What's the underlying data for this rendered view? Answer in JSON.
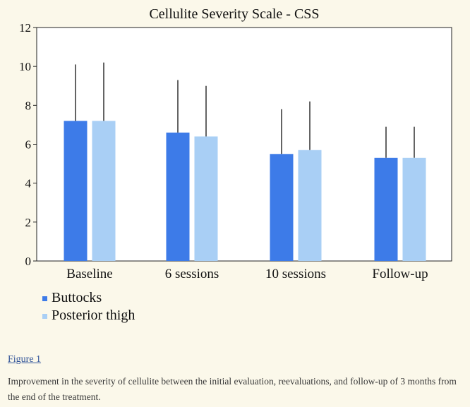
{
  "chart_data": {
    "type": "bar",
    "title": "Cellulite Severity Scale - CSS",
    "xlabel": "",
    "ylabel": "",
    "ylim": [
      0,
      12
    ],
    "yticks": [
      0,
      2,
      4,
      6,
      8,
      10,
      12
    ],
    "grid": false,
    "legend_position": "bottom-left",
    "categories": [
      "Baseline",
      "6 sessions",
      "10 sessions",
      "Follow-up"
    ],
    "series": [
      {
        "name": "Buttocks",
        "color": "#3d7be8",
        "values": [
          7.2,
          6.6,
          5.5,
          5.3
        ],
        "error_upper": [
          2.9,
          2.7,
          2.3,
          1.6
        ]
      },
      {
        "name": "Posterior thigh",
        "color": "#a9cff5",
        "values": [
          7.2,
          6.4,
          5.7,
          5.3
        ],
        "error_upper": [
          3.0,
          2.6,
          2.5,
          1.6
        ]
      }
    ]
  },
  "caption": {
    "figure_label": "Figure 1",
    "text": "Improvement in the severity of cellulite between the initial evaluation, reevaluations, and follow-up of 3 months from the end of the treatment."
  }
}
